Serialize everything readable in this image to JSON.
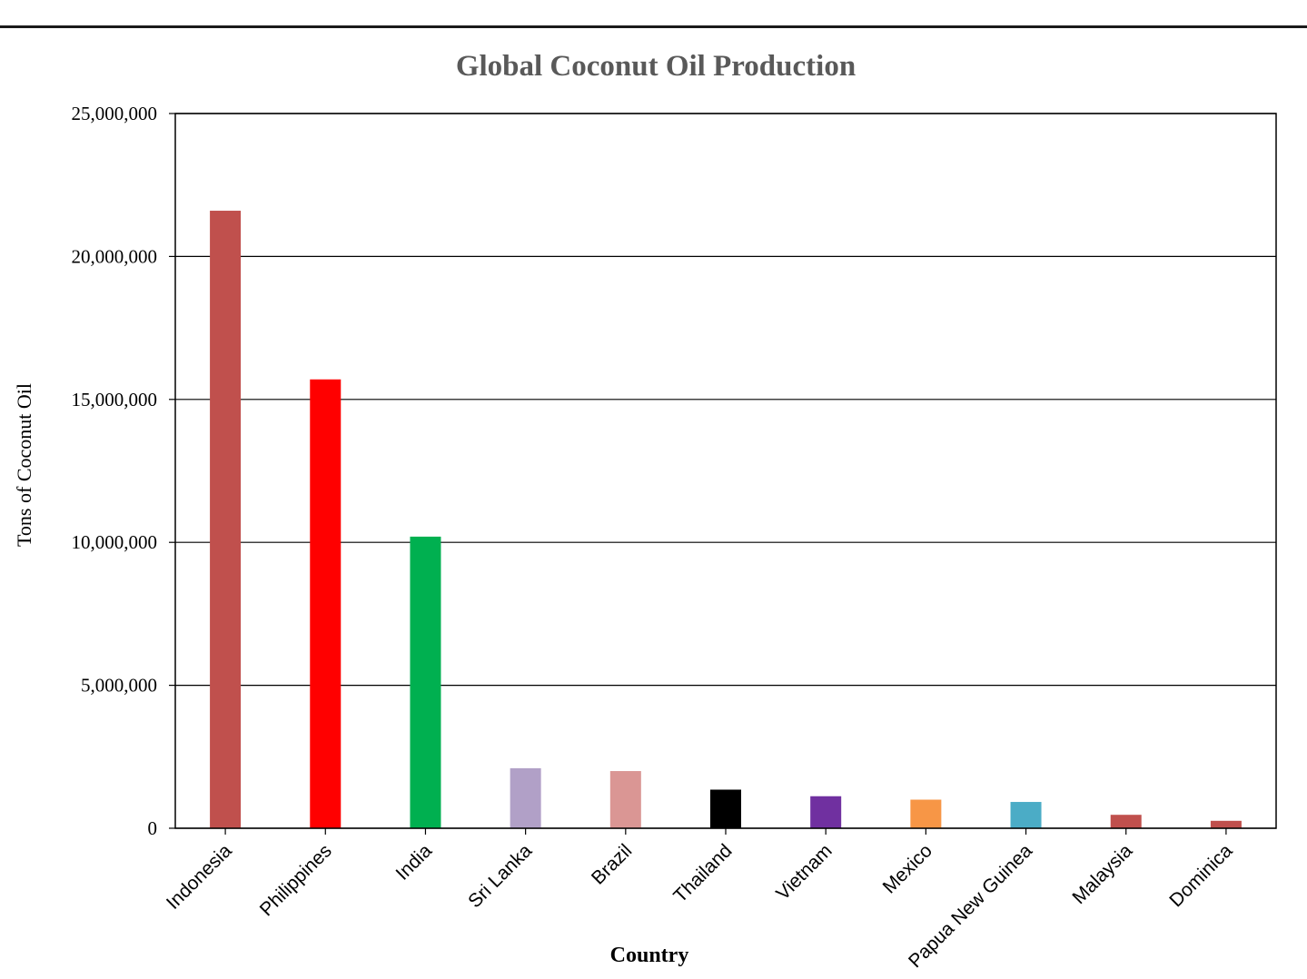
{
  "chart_data": {
    "type": "bar",
    "title": "Global Coconut Oil Production",
    "xlabel": "Country",
    "ylabel": "Tons of Coconut Oil",
    "ylim": [
      0,
      25000000
    ],
    "y_ticks": [
      0,
      5000000,
      10000000,
      15000000,
      20000000,
      25000000
    ],
    "y_tick_labels": [
      "0",
      "5,000,000",
      "10,000,000",
      "15,000,000",
      "20,000,000",
      "25,000,000"
    ],
    "grid": true,
    "categories": [
      "Indonesia",
      "Philippines",
      "India",
      "Sri Lanka",
      "Brazil",
      "Thailand",
      "Vietnam",
      "Mexico",
      "Papua New Guinea",
      "Malaysia",
      "Dominica"
    ],
    "values": [
      21600000,
      15700000,
      10200000,
      2100000,
      2000000,
      1350000,
      1120000,
      1000000,
      920000,
      470000,
      260000
    ],
    "colors": [
      "#C0504D",
      "#FF0000",
      "#00B050",
      "#B1A0C7",
      "#DA9694",
      "#000000",
      "#7030A0",
      "#F79646",
      "#4BACC6",
      "#C0504D",
      "#C0504D"
    ]
  }
}
